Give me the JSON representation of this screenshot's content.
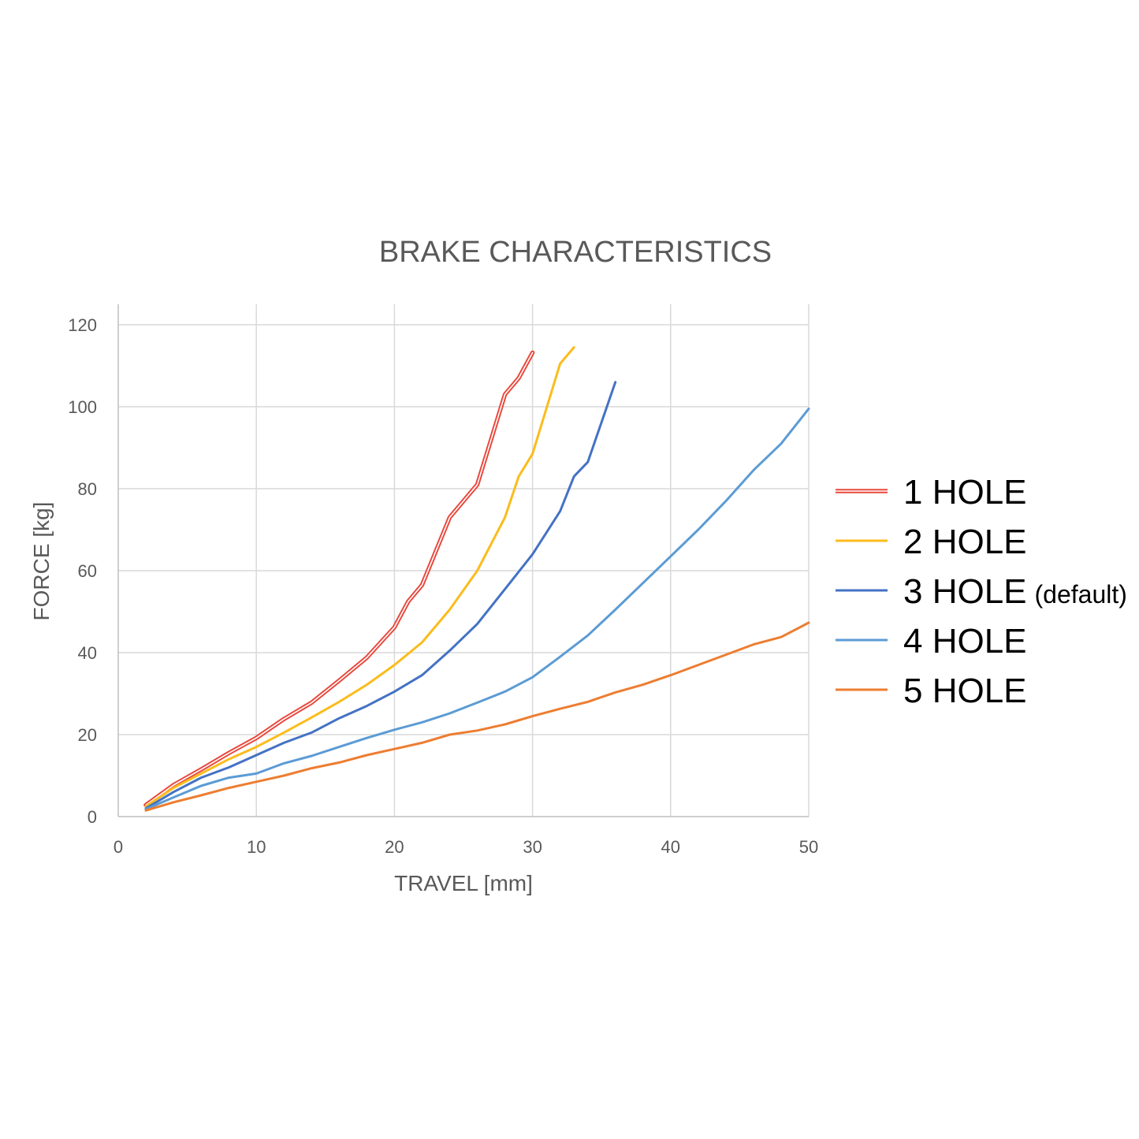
{
  "chart_data": {
    "type": "line",
    "title": "BRAKE CHARACTERISTICS",
    "xlabel": "TRAVEL [mm]",
    "ylabel": "FORCE [kg]",
    "xlim": [
      0,
      50
    ],
    "ylim": [
      0,
      120
    ],
    "xticks": [
      0,
      10,
      20,
      30,
      40,
      50
    ],
    "yticks": [
      0,
      20,
      40,
      60,
      80,
      100,
      120
    ],
    "grid": true,
    "legend_position": "right",
    "series": [
      {
        "name": "1 HOLE",
        "note": "",
        "color": "#e8483c",
        "style": "double",
        "points": [
          [
            2,
            2.8
          ],
          [
            4,
            7.7
          ],
          [
            6,
            11.5
          ],
          [
            8,
            15.5
          ],
          [
            10,
            19.2
          ],
          [
            12,
            23.8
          ],
          [
            14,
            27.8
          ],
          [
            16,
            33.2
          ],
          [
            18,
            38.8
          ],
          [
            20,
            46.2
          ],
          [
            21,
            52.5
          ],
          [
            22,
            56.5
          ],
          [
            24,
            73
          ],
          [
            26,
            81
          ],
          [
            28,
            103
          ],
          [
            29,
            107
          ],
          [
            30,
            113.2
          ]
        ]
      },
      {
        "name": "2 HOLE",
        "note": "",
        "color": "#fbbc1c",
        "style": "solid",
        "points": [
          [
            2,
            2.5
          ],
          [
            4,
            7
          ],
          [
            6,
            10.5
          ],
          [
            8,
            14
          ],
          [
            10,
            17
          ],
          [
            12,
            20.5
          ],
          [
            14,
            24.2
          ],
          [
            16,
            28
          ],
          [
            18,
            32.2
          ],
          [
            20,
            37
          ],
          [
            22,
            42.5
          ],
          [
            24,
            50.5
          ],
          [
            26,
            60
          ],
          [
            28,
            73
          ],
          [
            29,
            83
          ],
          [
            30,
            88.5
          ],
          [
            32,
            110.5
          ],
          [
            33,
            114.5
          ]
        ]
      },
      {
        "name": "3 HOLE",
        "note": "(default)",
        "color": "#4472c4",
        "style": "solid",
        "points": [
          [
            2,
            2
          ],
          [
            4,
            6
          ],
          [
            6,
            9.5
          ],
          [
            8,
            12
          ],
          [
            10,
            15
          ],
          [
            12,
            18
          ],
          [
            14,
            20.5
          ],
          [
            16,
            24
          ],
          [
            18,
            27
          ],
          [
            20,
            30.5
          ],
          [
            22,
            34.5
          ],
          [
            24,
            40.5
          ],
          [
            26,
            47
          ],
          [
            28,
            55.5
          ],
          [
            30,
            64
          ],
          [
            32,
            74.5
          ],
          [
            33,
            83
          ],
          [
            34,
            86.5
          ],
          [
            36,
            106
          ]
        ]
      },
      {
        "name": "4 HOLE",
        "note": "",
        "color": "#5b9bd5",
        "style": "solid",
        "points": [
          [
            2,
            1.8
          ],
          [
            4,
            4.7
          ],
          [
            6,
            7.5
          ],
          [
            8,
            9.5
          ],
          [
            10,
            10.5
          ],
          [
            12,
            13
          ],
          [
            14,
            14.8
          ],
          [
            16,
            17
          ],
          [
            18,
            19.2
          ],
          [
            20,
            21.2
          ],
          [
            22,
            23
          ],
          [
            24,
            25.2
          ],
          [
            26,
            27.8
          ],
          [
            28,
            30.5
          ],
          [
            30,
            34
          ],
          [
            32,
            39
          ],
          [
            34,
            44.2
          ],
          [
            36,
            50.5
          ],
          [
            38,
            57
          ],
          [
            40,
            63.5
          ],
          [
            42,
            70
          ],
          [
            44,
            77
          ],
          [
            46,
            84.5
          ],
          [
            48,
            91
          ],
          [
            50,
            99.5
          ]
        ]
      },
      {
        "name": "5 HOLE",
        "note": "",
        "color": "#ed7d31",
        "style": "solid",
        "points": [
          [
            2,
            1.5
          ],
          [
            4,
            3.5
          ],
          [
            6,
            5.2
          ],
          [
            8,
            7
          ],
          [
            10,
            8.5
          ],
          [
            12,
            10
          ],
          [
            14,
            11.8
          ],
          [
            16,
            13.2
          ],
          [
            18,
            15
          ],
          [
            20,
            16.5
          ],
          [
            22,
            18
          ],
          [
            24,
            20
          ],
          [
            26,
            21
          ],
          [
            28,
            22.5
          ],
          [
            30,
            24.5
          ],
          [
            32,
            26.3
          ],
          [
            34,
            28
          ],
          [
            36,
            30.3
          ],
          [
            38,
            32.2
          ],
          [
            40,
            34.5
          ],
          [
            42,
            37
          ],
          [
            44,
            39.5
          ],
          [
            46,
            42
          ],
          [
            48,
            43.8
          ],
          [
            50,
            47.3
          ]
        ]
      }
    ]
  }
}
